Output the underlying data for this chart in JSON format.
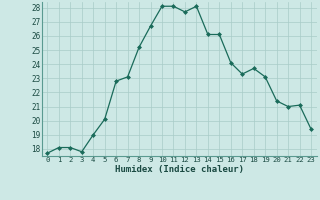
{
  "x": [
    0,
    1,
    2,
    3,
    4,
    5,
    6,
    7,
    8,
    9,
    10,
    11,
    12,
    13,
    14,
    15,
    16,
    17,
    18,
    19,
    20,
    21,
    22,
    23
  ],
  "y": [
    17.7,
    18.1,
    18.1,
    17.8,
    19.0,
    20.1,
    22.8,
    23.1,
    25.2,
    26.7,
    28.1,
    28.1,
    27.7,
    28.1,
    26.1,
    26.1,
    24.1,
    23.3,
    23.7,
    23.1,
    21.4,
    21.0,
    21.1,
    19.4
  ],
  "line_color": "#1a6b5a",
  "marker": "D",
  "marker_size": 2.0,
  "bg_color": "#cde8e5",
  "grid_color": "#a8ccc8",
  "xlabel": "Humidex (Indice chaleur)",
  "ylim_min": 17.5,
  "ylim_max": 28.4,
  "xlim_min": -0.5,
  "xlim_max": 23.5,
  "yticks": [
    18,
    19,
    20,
    21,
    22,
    23,
    24,
    25,
    26,
    27,
    28
  ],
  "xticks": [
    0,
    1,
    2,
    3,
    4,
    5,
    6,
    7,
    8,
    9,
    10,
    11,
    12,
    13,
    14,
    15,
    16,
    17,
    18,
    19,
    20,
    21,
    22,
    23
  ]
}
